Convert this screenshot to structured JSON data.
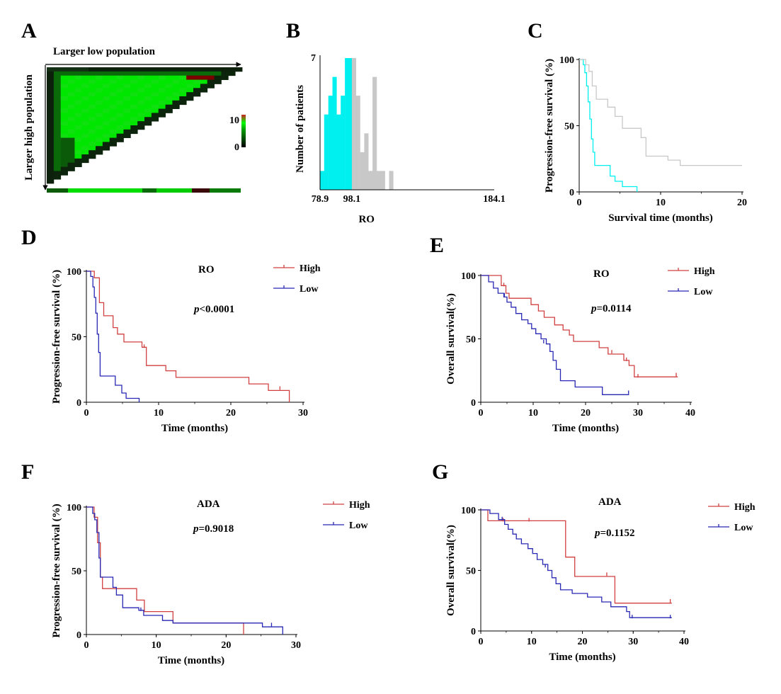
{
  "figure": {
    "panel_letters": [
      "A",
      "B",
      "C",
      "D",
      "E",
      "F",
      "G"
    ],
    "colors": {
      "heat_green": "#00e600",
      "heat_dark": "#0a1a0a",
      "heat_red": "#8a0000",
      "cyan": "#00f0f0",
      "gray": "#c8c8c8",
      "high": "#d04040",
      "low": "#2828b4"
    }
  },
  "chart_data": [
    {
      "panel": "A",
      "type": "heatmap",
      "title": "",
      "xlabel": "Larger low population",
      "ylabel": "Larger high population",
      "colorbar": {
        "min_label": "0",
        "max_label": "10",
        "range": [
          0,
          10
        ]
      },
      "shape": "upper-left triangle; mostly high values (green), dark border at edges, small red patch near top-right"
    },
    {
      "panel": "B",
      "type": "bar",
      "title": "",
      "xlabel": "RO",
      "ylabel": "Number of patients",
      "x_ticks": [
        "78.9",
        "98.1",
        "184.1"
      ],
      "y_ticks": [
        "7"
      ],
      "xlim": [
        78.9,
        184.1
      ],
      "ylim": [
        0,
        7
      ],
      "bin_width": 2.5,
      "bins": [
        {
          "start": 78.9,
          "count": 1,
          "group": "low"
        },
        {
          "start": 81.4,
          "count": 4,
          "group": "low"
        },
        {
          "start": 83.9,
          "count": 5,
          "group": "low"
        },
        {
          "start": 86.4,
          "count": 6,
          "group": "low"
        },
        {
          "start": 88.9,
          "count": 4,
          "group": "low"
        },
        {
          "start": 91.4,
          "count": 5,
          "group": "low"
        },
        {
          "start": 93.9,
          "count": 7,
          "group": "low"
        },
        {
          "start": 96.4,
          "count": 7,
          "group": "low"
        },
        {
          "start": 98.1,
          "count": 7,
          "group": "high"
        },
        {
          "start": 100.6,
          "count": 5,
          "group": "high"
        },
        {
          "start": 103.1,
          "count": 2,
          "group": "high"
        },
        {
          "start": 105.6,
          "count": 3,
          "group": "high"
        },
        {
          "start": 108.1,
          "count": 1,
          "group": "high"
        },
        {
          "start": 110.6,
          "count": 6,
          "group": "high"
        },
        {
          "start": 113.1,
          "count": 1,
          "group": "high"
        },
        {
          "start": 115.6,
          "count": 1,
          "group": "high"
        },
        {
          "start": 120.6,
          "count": 1,
          "group": "high"
        }
      ]
    },
    {
      "panel": "C",
      "type": "line",
      "title": "",
      "xlabel": "Survival time (months)",
      "ylabel": "Progression-free survival (%)",
      "x_ticks": [
        "0",
        "10",
        "20"
      ],
      "y_ticks": [
        "0",
        "50",
        "100"
      ],
      "xlim": [
        0,
        20
      ],
      "ylim": [
        0,
        100
      ],
      "step": true,
      "series": [
        {
          "color_key": "cyan",
          "x": [
            0,
            0.5,
            0.7,
            0.9,
            1.1,
            1.3,
            1.5,
            1.7,
            1.9,
            2.1,
            3.8,
            4.4,
            5.3,
            7.1
          ],
          "y": [
            100,
            96,
            90,
            80,
            68,
            55,
            40,
            30,
            20,
            20,
            12,
            8,
            4,
            0
          ]
        },
        {
          "color_key": "gray",
          "x": [
            0,
            0.8,
            1.2,
            1.6,
            2.1,
            3.5,
            4.4,
            5.3,
            7.6,
            8.2,
            10.9,
            12.4,
            20
          ],
          "y": [
            100,
            96,
            91,
            80,
            70,
            64,
            57,
            48,
            41,
            27,
            24,
            20,
            20
          ]
        }
      ]
    },
    {
      "panel": "D",
      "type": "line",
      "title": "",
      "annotation": "RO",
      "pvalue": {
        "p": "p",
        "rest": "<0.0001"
      },
      "xlabel": "Time (months)",
      "ylabel": "Progression-free survival (%)",
      "x_ticks": [
        "0",
        "10",
        "20",
        "30"
      ],
      "y_ticks": [
        "0",
        "50",
        "100"
      ],
      "xlim": [
        0,
        30
      ],
      "ylim": [
        0,
        100
      ],
      "step": true,
      "series": [
        {
          "name": "High",
          "color_key": "high",
          "x": [
            0,
            1.1,
            1.8,
            2.4,
            3.7,
            4.3,
            5.2,
            7.7,
            8.3,
            11.0,
            12.4,
            22.5,
            25.2,
            28.1
          ],
          "y": [
            100,
            95,
            76,
            66,
            57,
            52,
            46,
            42,
            28,
            24,
            19,
            14,
            9,
            0
          ],
          "censor": [
            [
              8.0,
              42
            ],
            [
              26.8,
              10
            ]
          ]
        },
        {
          "name": "Low",
          "color_key": "low",
          "x": [
            0,
            0.6,
            0.9,
            1.1,
            1.3,
            1.5,
            1.7,
            1.9,
            2.1,
            4.0,
            4.9,
            5.5,
            7.3
          ],
          "y": [
            100,
            96,
            88,
            80,
            68,
            52,
            38,
            20,
            20,
            13,
            7,
            3,
            0
          ],
          "censor": []
        }
      ]
    },
    {
      "panel": "E",
      "type": "line",
      "title": "",
      "annotation": "RO",
      "pvalue": {
        "p": "p",
        "rest": "=0.0114"
      },
      "xlabel": "Time (months)",
      "ylabel": "Overall survival(%)",
      "x_ticks": [
        "0",
        "10",
        "20",
        "30",
        "40"
      ],
      "y_ticks": [
        "0",
        "50",
        "100"
      ],
      "xlim": [
        0,
        40
      ],
      "ylim": [
        0,
        100
      ],
      "step": true,
      "series": [
        {
          "name": "High",
          "color_key": "high",
          "x": [
            0,
            3.9,
            4.8,
            5.4,
            9.6,
            11.0,
            12.1,
            14.1,
            15.7,
            16.9,
            17.7,
            19.6,
            22.6,
            24.3,
            27.3,
            28.3,
            29.3,
            37.6
          ],
          "y": [
            100,
            92,
            86,
            82,
            77,
            72,
            67,
            61,
            57,
            53,
            48,
            48,
            43,
            38,
            33,
            29,
            20,
            20
          ],
          "censor": [
            [
              4.4,
              92
            ],
            [
              25.0,
              39
            ],
            [
              27.8,
              33
            ],
            [
              30.0,
              20
            ],
            [
              37.3,
              21
            ]
          ]
        },
        {
          "name": "Low",
          "color_key": "low",
          "x": [
            0,
            1.5,
            2.4,
            3.3,
            4.4,
            5.0,
            5.8,
            6.7,
            7.8,
            9.0,
            9.7,
            10.5,
            11.5,
            12.5,
            13.2,
            13.8,
            14.4,
            15.2,
            18.0,
            23.2,
            28.3
          ],
          "y": [
            100,
            95,
            90,
            86,
            83,
            79,
            75,
            70,
            65,
            62,
            58,
            54,
            50,
            46,
            40,
            33,
            26,
            17,
            12,
            6,
            6
          ],
          "censor": [
            [
              4.5,
              84
            ],
            [
              12.0,
              47
            ],
            [
              28.2,
              7
            ]
          ]
        }
      ]
    },
    {
      "panel": "F",
      "type": "line",
      "title": "",
      "annotation": "ADA",
      "pvalue": {
        "p": "p",
        "rest": "=0.9018"
      },
      "xlabel": "Time (months)",
      "ylabel": "Progression-free survival (%)",
      "x_ticks": [
        "0",
        "10",
        "20",
        "30"
      ],
      "y_ticks": [
        "0",
        "50",
        "100"
      ],
      "xlim": [
        0,
        30
      ],
      "ylim": [
        0,
        100
      ],
      "step": true,
      "series": [
        {
          "name": "High",
          "color_key": "high",
          "x": [
            0,
            1.1,
            1.6,
            2.0,
            2.3,
            7.2,
            8.3,
            12.4,
            22.5
          ],
          "y": [
            100,
            92,
            72,
            45,
            36,
            27,
            18,
            9,
            0
          ],
          "censor": []
        },
        {
          "name": "Low",
          "color_key": "low",
          "x": [
            0,
            0.9,
            1.2,
            1.5,
            1.8,
            2.0,
            2.4,
            3.8,
            4.3,
            5.2,
            7.5,
            8.2,
            10.9,
            12.4,
            25.2,
            28.1
          ],
          "y": [
            100,
            95,
            90,
            80,
            60,
            45,
            45,
            37,
            31,
            21,
            19,
            15,
            11,
            9,
            6,
            0
          ],
          "censor": [
            [
              7.8,
              19
            ],
            [
              26.5,
              7
            ]
          ]
        }
      ]
    },
    {
      "panel": "G",
      "type": "line",
      "title": "",
      "annotation": "ADA",
      "pvalue": {
        "p": "p",
        "rest": "=0.1152"
      },
      "xlabel": "Time (months)",
      "ylabel": "Overall survival(%)",
      "x_ticks": [
        "0",
        "10",
        "20",
        "30",
        "40"
      ],
      "y_ticks": [
        "0",
        "50",
        "100"
      ],
      "xlim": [
        0,
        40
      ],
      "ylim": [
        0,
        100
      ],
      "step": true,
      "series": [
        {
          "name": "High",
          "color_key": "high",
          "x": [
            0,
            1.4,
            15.7,
            16.7,
            18.5,
            26.4,
            37.6
          ],
          "y": [
            100,
            91,
            91,
            61,
            45,
            23,
            23
          ],
          "censor": [
            [
              4.4,
              91
            ],
            [
              9.5,
              91
            ],
            [
              24.8,
              46
            ],
            [
              37.3,
              24
            ]
          ]
        },
        {
          "name": "Low",
          "color_key": "low",
          "x": [
            0,
            1.8,
            3.5,
            4.7,
            5.4,
            6.3,
            7.0,
            8.0,
            9.3,
            10.2,
            11.1,
            12.2,
            13.2,
            14.0,
            14.8,
            15.7,
            18.0,
            21.0,
            23.8,
            25.6,
            28.7,
            29.3,
            37.6
          ],
          "y": [
            100,
            97,
            92,
            88,
            84,
            80,
            76,
            72,
            68,
            64,
            59,
            55,
            50,
            44,
            39,
            34,
            31,
            28,
            24,
            20,
            16,
            11,
            11
          ],
          "censor": [
            [
              4.2,
              92
            ],
            [
              12.7,
              53
            ],
            [
              29.8,
              11
            ],
            [
              37.3,
              11
            ]
          ]
        }
      ]
    }
  ]
}
